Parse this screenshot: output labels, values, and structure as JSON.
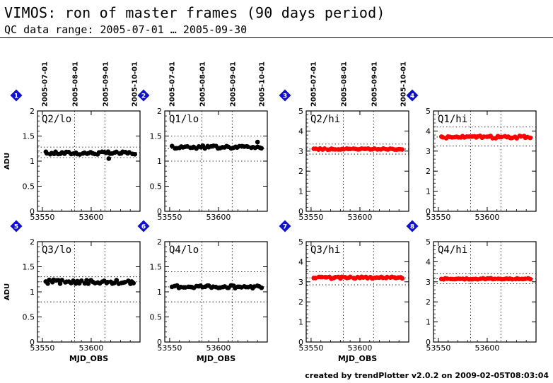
{
  "header": {
    "title": "VIMOS: ron of master frames (90 days period)",
    "subtitle": "QC data range: 2005-07-01 … 2005-09-30"
  },
  "footer": "created by trendPlotter v2.0.2 on 2009-02-05T08:03:04",
  "colors": {
    "lo": "#000000",
    "hi": "#ff0000",
    "marker": "#1010d0"
  },
  "chart_data": [
    {
      "type": "scatter",
      "panel": "1",
      "label": "Q2/lo",
      "ylabel": "ADU",
      "xlabel": "",
      "ylim": [
        0,
        2
      ],
      "yticks": [
        0,
        0.5,
        1,
        1.5,
        2
      ],
      "xlim": [
        53545,
        53650
      ],
      "xticks": [
        53550,
        53600
      ],
      "top_dates": [
        "2005-07-01",
        "2005-08-01",
        "2005-09-01",
        "2005-10-01"
      ],
      "top_date_mjd": [
        53552,
        53583,
        53614,
        53644
      ],
      "ref_lines": [
        1.07,
        1.17,
        1.28
      ],
      "series_color": "#000000",
      "points": {
        "x_start": 53553,
        "x_end": 53644,
        "n": 42,
        "mean": 1.16,
        "amp": 0.03,
        "outliers": [
          [
            53618,
            1.05
          ]
        ]
      }
    },
    {
      "type": "scatter",
      "panel": "2",
      "label": "Q1/lo",
      "ylabel": "",
      "xlabel": "",
      "ylim": [
        0,
        2
      ],
      "yticks": [
        0,
        0.5,
        1,
        1.5,
        2
      ],
      "xlim": [
        53545,
        53650
      ],
      "xticks": [
        53550,
        53600
      ],
      "top_dates": [
        "2005-07-01",
        "2005-08-01",
        "2005-09-01",
        "2005-10-01"
      ],
      "top_date_mjd": [
        53552,
        53583,
        53614,
        53644
      ],
      "ref_lines": [
        1.0,
        1.25,
        1.5
      ],
      "series_color": "#000000",
      "points": {
        "x_start": 53553,
        "x_end": 53644,
        "n": 42,
        "mean": 1.28,
        "amp": 0.03,
        "outliers": [
          [
            53640,
            1.38
          ]
        ]
      }
    },
    {
      "type": "scatter",
      "panel": "3",
      "label": "Q2/hi",
      "ylabel": "",
      "xlabel": "",
      "ylim": [
        0,
        5
      ],
      "yticks": [
        0,
        1,
        2,
        3,
        4,
        5
      ],
      "xlim": [
        53545,
        53650
      ],
      "xticks": [
        53550,
        53600
      ],
      "top_dates": [
        "2005-07-01",
        "2005-08-01",
        "2005-09-01",
        "2005-10-01"
      ],
      "top_date_mjd": [
        53552,
        53583,
        53614,
        53644
      ],
      "ref_lines": [
        2.85,
        3.1,
        3.35
      ],
      "series_color": "#ff0000",
      "points": {
        "x_start": 53553,
        "x_end": 53644,
        "n": 42,
        "mean": 3.1,
        "amp": 0.03,
        "outliers": []
      }
    },
    {
      "type": "scatter",
      "panel": "4",
      "label": "Q1/hi",
      "ylabel": "",
      "xlabel": "",
      "ylim": [
        0,
        5
      ],
      "yticks": [
        0,
        1,
        2,
        3,
        4,
        5
      ],
      "xlim": [
        53545,
        53650
      ],
      "xticks": [
        53550,
        53600
      ],
      "top_dates": [],
      "top_date_mjd": [],
      "ref_lines": [
        3.25,
        3.7,
        4.2
      ],
      "series_color": "#ff0000",
      "points": {
        "x_start": 53553,
        "x_end": 53644,
        "n": 42,
        "mean": 3.7,
        "amp": 0.06,
        "outliers": []
      }
    },
    {
      "type": "scatter",
      "panel": "5",
      "label": "Q3/lo",
      "ylabel": "ADU",
      "xlabel": "MJD_OBS",
      "ylim": [
        0,
        2
      ],
      "yticks": [
        0,
        0.5,
        1,
        1.5,
        2
      ],
      "xlim": [
        53545,
        53650
      ],
      "xticks": [
        53550,
        53600
      ],
      "top_dates": [],
      "top_date_mjd": [],
      "ref_lines": [
        0.8,
        1.2,
        1.3
      ],
      "series_color": "#000000",
      "points": {
        "x_start": 53553,
        "x_end": 53644,
        "n": 42,
        "mean": 1.2,
        "amp": 0.04,
        "outliers": []
      }
    },
    {
      "type": "scatter",
      "panel": "6",
      "label": "Q4/lo",
      "ylabel": "",
      "xlabel": "MJD_OBS",
      "ylim": [
        0,
        2
      ],
      "yticks": [
        0,
        0.5,
        1,
        1.5,
        2
      ],
      "xlim": [
        53545,
        53650
      ],
      "xticks": [
        53550,
        53600
      ],
      "top_dates": [],
      "top_date_mjd": [],
      "ref_lines": [
        0.8,
        1.1,
        1.4
      ],
      "series_color": "#000000",
      "points": {
        "x_start": 53553,
        "x_end": 53644,
        "n": 42,
        "mean": 1.1,
        "amp": 0.03,
        "outliers": []
      }
    },
    {
      "type": "scatter",
      "panel": "7",
      "label": "Q3/hi",
      "ylabel": "",
      "xlabel": "MJD_OBS",
      "ylim": [
        0,
        5
      ],
      "yticks": [
        0,
        1,
        2,
        3,
        4,
        5
      ],
      "xlim": [
        53545,
        53650
      ],
      "xticks": [
        53550,
        53600
      ],
      "top_dates": [],
      "top_date_mjd": [],
      "ref_lines": [
        2.85,
        3.2,
        3.5
      ],
      "series_color": "#ff0000",
      "points": {
        "x_start": 53553,
        "x_end": 53644,
        "n": 42,
        "mean": 3.2,
        "amp": 0.05,
        "outliers": []
      }
    },
    {
      "type": "scatter",
      "panel": "8",
      "label": "Q4/hi",
      "ylabel": "",
      "xlabel": "",
      "ylim": [
        0,
        5
      ],
      "yticks": [
        0,
        1,
        2,
        3,
        4,
        5
      ],
      "xlim": [
        53545,
        53650
      ],
      "xticks": [
        53550,
        53600
      ],
      "top_dates": [],
      "top_date_mjd": [],
      "ref_lines": [
        2.9,
        3.15,
        3.4
      ],
      "series_color": "#ff0000",
      "points": {
        "x_start": 53553,
        "x_end": 53644,
        "n": 42,
        "mean": 3.15,
        "amp": 0.03,
        "outliers": []
      }
    }
  ]
}
